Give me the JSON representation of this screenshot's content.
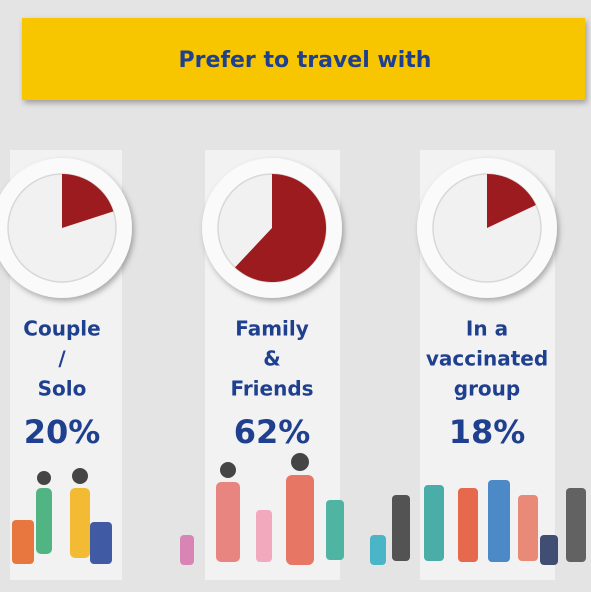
{
  "header": {
    "title": "Prefer to travel with"
  },
  "chart_data": [
    {
      "type": "pie",
      "label_lines": [
        "Couple",
        "/",
        "Solo"
      ],
      "values": [
        20
      ],
      "value_labels": [
        "20%"
      ],
      "color": "#9b1b1e"
    },
    {
      "type": "pie",
      "label_lines": [
        "Family",
        "&",
        "Friends"
      ],
      "values": [
        62
      ],
      "value_labels": [
        "62%"
      ],
      "color": "#9b1b1e"
    },
    {
      "type": "pie",
      "label_lines": [
        "In a",
        "vaccinated",
        "group"
      ],
      "values": [
        18
      ],
      "value_labels": [
        "18%"
      ],
      "color": "#9b1b1e"
    }
  ]
}
